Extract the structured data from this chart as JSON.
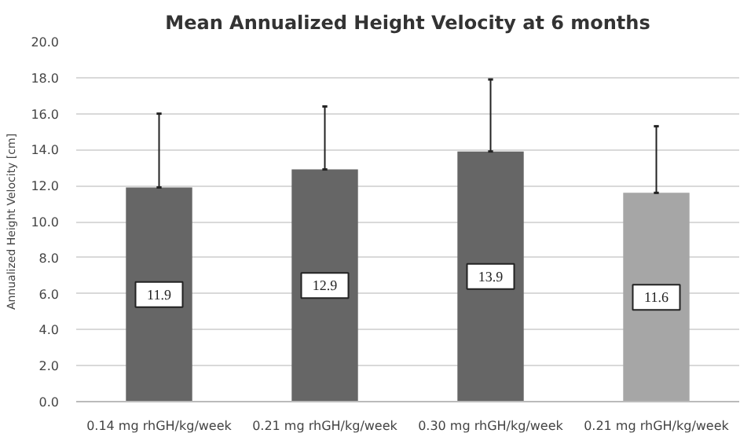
{
  "chart_data": {
    "type": "bar",
    "title": "Mean Annualized Height Velocity at 6 months",
    "ylabel": "Annualized Height Velocity [cm]",
    "categories": [
      "0.14 mg rhGH/kg/week",
      "0.21 mg rhGH/kg/week",
      "0.30 mg rhGH/kg/week",
      "0.21 mg rhGH/kg/week"
    ],
    "values": [
      11.9,
      12.9,
      13.9,
      11.6
    ],
    "colors": [
      "#666666",
      "#666666",
      "#666666",
      "#a6a6a6"
    ],
    "errors": [
      [
        11.9,
        16.0
      ],
      [
        12.9,
        16.4
      ],
      [
        13.9,
        17.9
      ],
      [
        11.6,
        15.3
      ]
    ],
    "data_labels": true,
    "ylim": [
      0,
      20
    ],
    "yticks": [
      {
        "value": 0,
        "label": "0.0"
      },
      {
        "value": 2,
        "label": "2.0"
      },
      {
        "value": 4,
        "label": "4.0"
      },
      {
        "value": 6,
        "label": "6.0"
      },
      {
        "value": 8,
        "label": "8.0"
      },
      {
        "value": 10,
        "label": "10.0"
      },
      {
        "value": 12,
        "label": "12.0"
      },
      {
        "value": 14,
        "label": "14.0"
      },
      {
        "value": 16,
        "label": "16.0"
      },
      {
        "value": 18,
        "label": "18.0"
      },
      {
        "value": 20,
        "label": "20.0"
      }
    ],
    "grid": "y"
  }
}
